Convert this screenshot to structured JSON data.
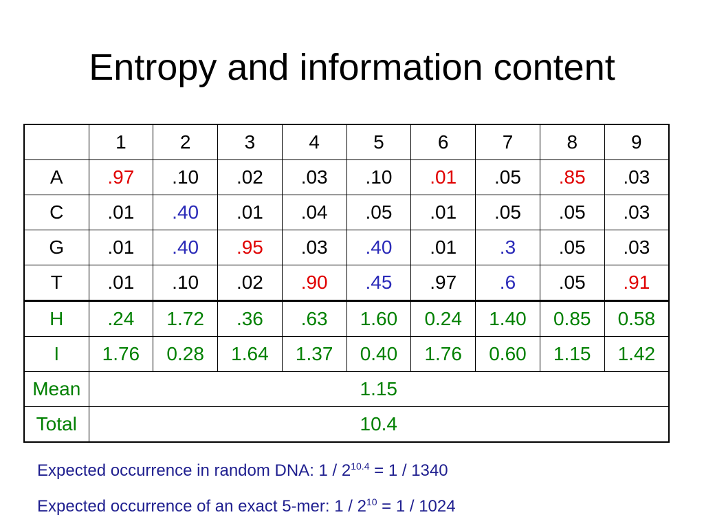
{
  "title": "Entropy and information content",
  "colors": {
    "red": "#e00000",
    "blue": "#2a2ab8",
    "green": "#008000",
    "black": "#000000",
    "note": "#1f1f8f"
  },
  "table": {
    "header": [
      "",
      "1",
      "2",
      "3",
      "4",
      "5",
      "6",
      "7",
      "8",
      "9"
    ],
    "rows": [
      {
        "label": "A",
        "label_color": "black",
        "cells": [
          {
            "v": ".97",
            "c": "red"
          },
          {
            "v": ".10",
            "c": "black"
          },
          {
            "v": ".02",
            "c": "black"
          },
          {
            "v": ".03",
            "c": "black"
          },
          {
            "v": ".10",
            "c": "black"
          },
          {
            "v": ".01",
            "c": "red"
          },
          {
            "v": ".05",
            "c": "black"
          },
          {
            "v": ".85",
            "c": "red"
          },
          {
            "v": ".03",
            "c": "black"
          }
        ]
      },
      {
        "label": "C",
        "label_color": "black",
        "cells": [
          {
            "v": ".01",
            "c": "black"
          },
          {
            "v": ".40",
            "c": "blue"
          },
          {
            "v": ".01",
            "c": "black"
          },
          {
            "v": ".04",
            "c": "black"
          },
          {
            "v": ".05",
            "c": "black"
          },
          {
            "v": ".01",
            "c": "black"
          },
          {
            "v": ".05",
            "c": "black"
          },
          {
            "v": ".05",
            "c": "black"
          },
          {
            "v": ".03",
            "c": "black"
          }
        ]
      },
      {
        "label": "G",
        "label_color": "black",
        "cells": [
          {
            "v": ".01",
            "c": "black"
          },
          {
            "v": ".40",
            "c": "blue"
          },
          {
            "v": ".95",
            "c": "red"
          },
          {
            "v": ".03",
            "c": "black"
          },
          {
            "v": ".40",
            "c": "blue"
          },
          {
            "v": ".01",
            "c": "black"
          },
          {
            "v": ".3",
            "c": "blue"
          },
          {
            "v": ".05",
            "c": "black"
          },
          {
            "v": ".03",
            "c": "black"
          }
        ]
      },
      {
        "label": "T",
        "label_color": "black",
        "cells": [
          {
            "v": ".01",
            "c": "black"
          },
          {
            "v": ".10",
            "c": "black"
          },
          {
            "v": ".02",
            "c": "black"
          },
          {
            "v": ".90",
            "c": "red"
          },
          {
            "v": ".45",
            "c": "blue"
          },
          {
            "v": ".97",
            "c": "black"
          },
          {
            "v": ".6",
            "c": "blue"
          },
          {
            "v": ".05",
            "c": "black"
          },
          {
            "v": ".91",
            "c": "red"
          }
        ]
      },
      {
        "label": "H",
        "label_color": "green",
        "sep": true,
        "cells": [
          {
            "v": ".24",
            "c": "green"
          },
          {
            "v": "1.72",
            "c": "green"
          },
          {
            "v": ".36",
            "c": "green"
          },
          {
            "v": ".63",
            "c": "green"
          },
          {
            "v": "1.60",
            "c": "green"
          },
          {
            "v": "0.24",
            "c": "green"
          },
          {
            "v": "1.40",
            "c": "green"
          },
          {
            "v": "0.85",
            "c": "green"
          },
          {
            "v": "0.58",
            "c": "green"
          }
        ]
      },
      {
        "label": "I",
        "label_color": "green",
        "cells": [
          {
            "v": "1.76",
            "c": "green"
          },
          {
            "v": "0.28",
            "c": "green"
          },
          {
            "v": "1.64",
            "c": "green"
          },
          {
            "v": "1.37",
            "c": "green"
          },
          {
            "v": "0.40",
            "c": "green"
          },
          {
            "v": "1.76",
            "c": "green"
          },
          {
            "v": "0.60",
            "c": "green"
          },
          {
            "v": "1.15",
            "c": "green"
          },
          {
            "v": "1.42",
            "c": "green"
          }
        ]
      }
    ],
    "summary": [
      {
        "label": "Mean",
        "value": "1.15"
      },
      {
        "label": "Total",
        "value": "10.4"
      }
    ]
  },
  "notes": {
    "line1": {
      "prefix": "Expected occurrence in random DNA: 1 / 2",
      "sup": "10.4",
      "suffix": " = 1 / 1340"
    },
    "line2": {
      "prefix": "Expected occurrence of an exact 5-mer: 1 / 2",
      "sup": "10",
      "suffix": " = 1 / 1024"
    }
  }
}
